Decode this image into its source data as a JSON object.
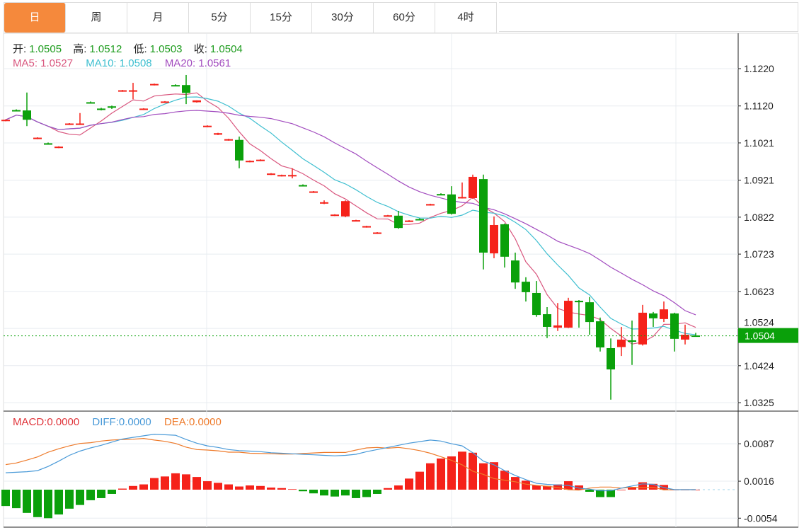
{
  "tabs": [
    {
      "label": "日",
      "active": true
    },
    {
      "label": "周",
      "active": false
    },
    {
      "label": "月",
      "active": false
    },
    {
      "label": "5分",
      "active": false
    },
    {
      "label": "15分",
      "active": false
    },
    {
      "label": "30分",
      "active": false
    },
    {
      "label": "60分",
      "active": false
    },
    {
      "label": "4时",
      "active": false
    }
  ],
  "ohlc_legend": {
    "open_label": "开:",
    "open": "1.0505",
    "high_label": "高:",
    "high": "1.0512",
    "low_label": "低:",
    "low": "1.0503",
    "close_label": "收:",
    "close": "1.0504"
  },
  "ma_legend": {
    "ma5": "MA5: 1.0527",
    "ma10": "MA10: 1.0508",
    "ma20": "MA20: 1.0561"
  },
  "macd_legend": {
    "macd": "MACD:0.0000",
    "diff": "DIFF:0.0000",
    "dea": "DEA:0.0000"
  },
  "last_price": "1.0504",
  "colors": {
    "up": "#f5221a",
    "down": "#0aa00a",
    "ma5": "#d9577f",
    "ma10": "#3fbfd0",
    "ma20": "#a24cbf",
    "diff": "#4a9ad8",
    "dea": "#ee7a2a",
    "accent": "#f5893c",
    "last_price_bg": "#0aa00a"
  },
  "chart_data": [
    {
      "type": "candlestick",
      "yticks": [
        "1.1220",
        "1.1120",
        "1.1021",
        "1.0921",
        "1.0822",
        "1.0723",
        "1.0623",
        "1.0524",
        "1.0424",
        "1.0325"
      ],
      "ylim": [
        1.03,
        1.131
      ],
      "grid": true,
      "ma_periods": [
        5,
        10,
        20
      ],
      "candles_ohlc": [
        [
          1.108,
          1.1084,
          1.1079,
          1.1083
        ],
        [
          1.1109,
          1.1111,
          1.1106,
          1.1108
        ],
        [
          1.1108,
          1.1156,
          1.1066,
          1.1083
        ],
        [
          1.1032,
          1.1036,
          1.1031,
          1.1035
        ],
        [
          1.102,
          1.1022,
          1.1017,
          1.1019
        ],
        [
          1.1008,
          1.1012,
          1.1007,
          1.1011
        ],
        [
          1.107,
          1.1074,
          1.1069,
          1.1073
        ],
        [
          1.107,
          1.1101,
          1.1069,
          1.1073
        ],
        [
          1.113,
          1.1132,
          1.1127,
          1.1129
        ],
        [
          1.1113,
          1.1115,
          1.1108,
          1.1112
        ],
        [
          1.1119,
          1.1121,
          1.1112,
          1.1117
        ],
        [
          1.1159,
          1.1163,
          1.1158,
          1.1162
        ],
        [
          1.1159,
          1.1182,
          1.1138,
          1.1162
        ],
        [
          1.111,
          1.1114,
          1.1109,
          1.1113
        ],
        [
          1.1176,
          1.118,
          1.1175,
          1.1179
        ],
        [
          1.1129,
          1.1133,
          1.1128,
          1.1132
        ],
        [
          1.1176,
          1.1178,
          1.1173,
          1.1175
        ],
        [
          1.1176,
          1.1203,
          1.1125,
          1.1155
        ],
        [
          1.113,
          1.1135,
          1.1129,
          1.1135
        ],
        [
          1.1064,
          1.1068,
          1.1063,
          1.1067
        ],
        [
          1.1043,
          1.1048,
          1.1042,
          1.1047
        ],
        [
          1.1028,
          1.1032,
          1.1027,
          1.1031
        ],
        [
          1.1029,
          1.1038,
          1.0953,
          1.0974
        ],
        [
          1.097,
          1.0974,
          1.0969,
          1.0973
        ],
        [
          1.0973,
          1.0977,
          1.0972,
          1.0976
        ],
        [
          1.0936,
          1.094,
          1.0935,
          1.0939
        ],
        [
          1.0932,
          1.0936,
          1.0931,
          1.0935
        ],
        [
          1.0932,
          1.0953,
          1.0926,
          1.0935
        ],
        [
          1.0908,
          1.091,
          1.0905,
          1.0907
        ],
        [
          1.0888,
          1.0892,
          1.0887,
          1.0891
        ],
        [
          1.0861,
          1.0867,
          1.0857,
          1.0862
        ],
        [
          1.0826,
          1.083,
          1.0825,
          1.0829
        ],
        [
          1.0824,
          1.0867,
          1.0822,
          1.0865
        ],
        [
          1.0813,
          1.0815,
          1.0812,
          1.0814
        ],
        [
          1.0795,
          1.0799,
          1.0794,
          1.0798
        ],
        [
          1.0778,
          1.0782,
          1.0777,
          1.0781
        ],
        [
          1.0825,
          1.0828,
          1.0824,
          1.0827
        ],
        [
          1.0826,
          1.0839,
          1.0791,
          1.0793
        ],
        [
          1.081,
          1.0814,
          1.0809,
          1.0813
        ],
        [
          1.0817,
          1.0819,
          1.0814,
          1.0816
        ],
        [
          1.0854,
          1.0858,
          1.0853,
          1.0857
        ],
        [
          1.0884,
          1.0886,
          1.0881,
          1.0883
        ],
        [
          1.0883,
          1.0905,
          1.0829,
          1.0831
        ],
        [
          1.0873,
          1.0915,
          1.0872,
          1.0876
        ],
        [
          1.0873,
          1.0936,
          1.0871,
          1.093
        ],
        [
          1.0924,
          1.0936,
          1.0682,
          1.0727
        ],
        [
          1.0725,
          1.0824,
          1.0712,
          1.0801
        ],
        [
          1.0803,
          1.0805,
          1.0687,
          1.0716
        ],
        [
          1.0706,
          1.0727,
          1.063,
          1.0647
        ],
        [
          1.0649,
          1.0661,
          1.0596,
          1.0621
        ],
        [
          1.0619,
          1.0651,
          1.0555,
          1.056
        ],
        [
          1.0562,
          1.0581,
          1.0498,
          1.0528
        ],
        [
          1.0526,
          1.0592,
          1.0517,
          1.0532
        ],
        [
          1.0526,
          1.0606,
          1.0525,
          1.0598
        ],
        [
          1.0598,
          1.06,
          1.0526,
          1.0594
        ],
        [
          1.0594,
          1.0608,
          1.0507,
          1.0541
        ],
        [
          1.0543,
          1.0553,
          1.0462,
          1.0473
        ],
        [
          1.0471,
          1.0497,
          1.0333,
          1.0414
        ],
        [
          1.0474,
          1.0528,
          1.045,
          1.0494
        ],
        [
          1.0492,
          1.0545,
          1.0426,
          1.0488
        ],
        [
          1.0481,
          1.0587,
          1.0478,
          1.0566
        ],
        [
          1.0564,
          1.0568,
          1.0528,
          1.0551
        ],
        [
          1.0549,
          1.0596,
          1.0541,
          1.0575
        ],
        [
          1.0564,
          1.0566,
          1.0462,
          1.0496
        ],
        [
          1.0494,
          1.0534,
          1.0481,
          1.0507
        ],
        [
          1.0505,
          1.0512,
          1.0503,
          1.0504
        ]
      ]
    },
    {
      "type": "bar+line",
      "yticks": [
        "0.0087",
        "0.0016",
        "-0.0054"
      ],
      "grid": true,
      "macd_hist": [
        -0.0031,
        -0.0035,
        -0.0044,
        -0.0052,
        -0.0054,
        -0.0047,
        -0.0036,
        -0.0029,
        -0.002,
        -0.0016,
        -0.0008,
        0.0002,
        0.0007,
        0.001,
        0.0022,
        0.0025,
        0.0031,
        0.0029,
        0.0024,
        0.0016,
        0.0013,
        0.001,
        0.0006,
        0.0008,
        0.0007,
        0.0004,
        0.0003,
        0.0001,
        -0.0003,
        -0.0007,
        -0.0011,
        -0.0013,
        -0.0011,
        -0.0016,
        -0.0014,
        -0.0008,
        0.0003,
        0.0008,
        0.0021,
        0.0034,
        0.005,
        0.0059,
        0.0063,
        0.0072,
        0.007,
        0.005,
        0.0052,
        0.0036,
        0.0024,
        0.0017,
        0.0008,
        0.0007,
        0.001,
        0.0016,
        0.0008,
        -0.0004,
        -0.0014,
        -0.0014,
        0.0,
        0.0005,
        0.0014,
        0.0011,
        0.0009,
        0,
        0,
        0
      ],
      "diff": [
        0.0032,
        0.0033,
        0.0034,
        0.0036,
        0.0044,
        0.0054,
        0.0065,
        0.0073,
        0.0079,
        0.0084,
        0.009,
        0.0096,
        0.0099,
        0.0102,
        0.0105,
        0.0104,
        0.0103,
        0.0095,
        0.0088,
        0.0083,
        0.008,
        0.0076,
        0.0074,
        0.0073,
        0.0072,
        0.007,
        0.0069,
        0.0068,
        0.0067,
        0.0066,
        0.0065,
        0.0064,
        0.0065,
        0.0067,
        0.0072,
        0.0076,
        0.008,
        0.0084,
        0.0088,
        0.0091,
        0.0094,
        0.0092,
        0.0087,
        0.0083,
        0.007,
        0.0054,
        0.0047,
        0.0036,
        0.0027,
        0.0019,
        0.0012,
        0.001,
        0.0009,
        0.0008,
        0.0003,
        0.0001,
        -0.0002,
        -0.0002,
        0.0003,
        0.0007,
        0.0011,
        0.001,
        0.0004,
        0,
        0,
        0
      ]
    }
  ]
}
